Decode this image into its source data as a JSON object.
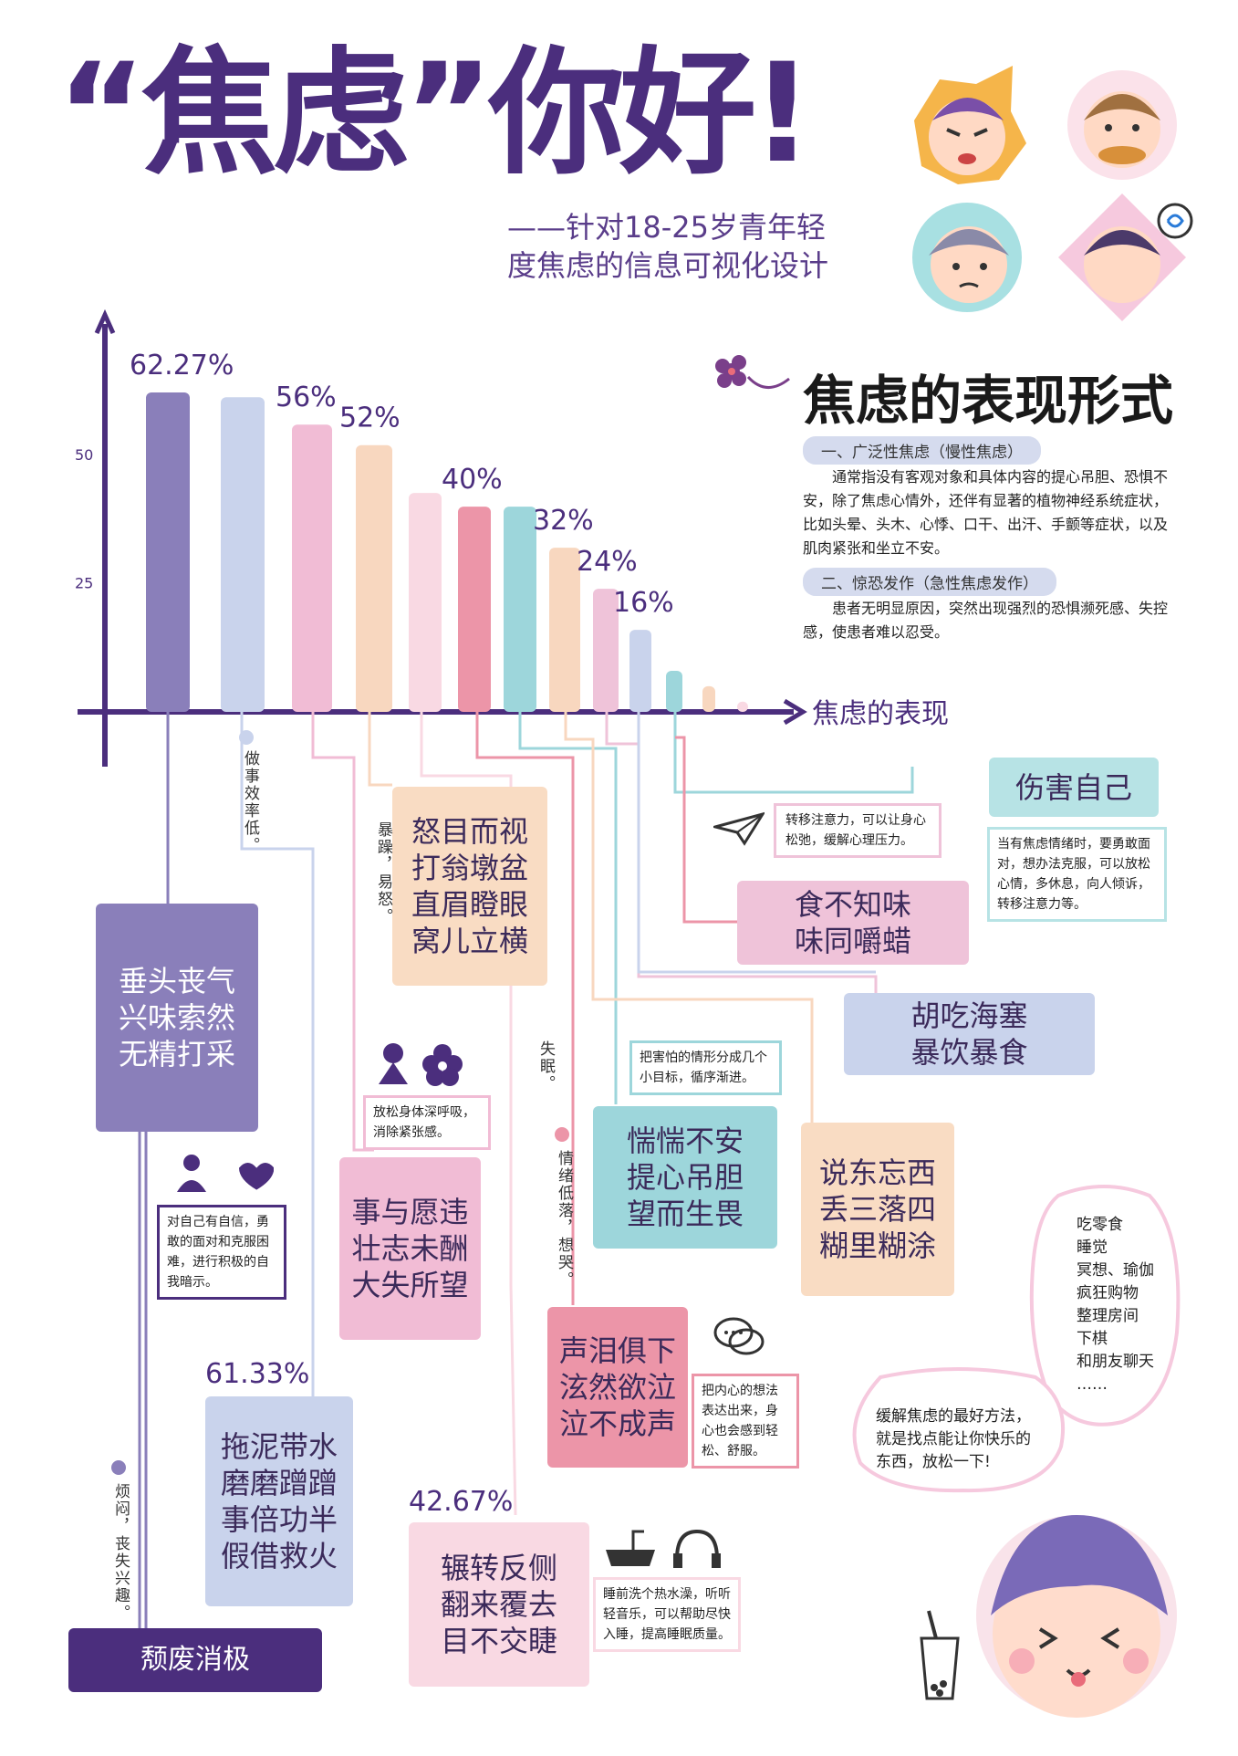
{
  "header": {
    "title": "“焦虑”你好!",
    "subtitle": "——针对18-25岁青年轻度焦虑的信息可视化设计"
  },
  "section": {
    "title": "焦虑的表现形式",
    "type1_label": "一、广泛性焦虑（慢性焦虑）",
    "type1_desc": "通常指没有客观对象和具体内容的提心吊胆、恐惧不安，除了焦虑心情外，还伴有显著的植物神经系统症状，比如头晕、头木、心悸、口干、出汗、手颤等症状，以及肌肉紧张和坐立不安。",
    "type2_label": "二、惊恐发作（急性焦虑发作）",
    "type2_desc": "患者无明显原因，突然出现强烈的恐惧濒死感、失控感，使患者难以忍受。"
  },
  "chart_data": {
    "type": "bar",
    "xlabel": "焦虑的表现",
    "ylabel": "",
    "yticks": [
      25,
      50
    ],
    "values": [
      62.27,
      61.33,
      56,
      52,
      42.67,
      40,
      40,
      32,
      24,
      16,
      8,
      5,
      2
    ],
    "value_labels": [
      "62.27%",
      "",
      "56%",
      "52%",
      "",
      "40%",
      "",
      "32%",
      "24%",
      "16%",
      "",
      "",
      ""
    ],
    "colors": [
      "#8a7fba",
      "#c9d3ec",
      "#f1bcd5",
      "#f8d7bf",
      "#f9d9e3",
      "#ec95a8",
      "#9dd6db",
      "#f8d7bf",
      "#efc3d9",
      "#c9d3ec",
      "#9dd6db",
      "#f8d7bf",
      "#f9d9e3"
    ]
  },
  "boxes": {
    "chuitou": "垂头丧气\n兴味索然\n无精打采",
    "nu": "怒目而视\n打翁墩盆\n直眉瞪眼\n窝儿立横",
    "shiyu": "事与愿违\n壮志未酬\n大失所望",
    "tuoni": "拖泥带水\n磨磨蹭蹭\n事倍功半\n假借救火",
    "zhuanzhuan": "辗转反侧\n翻来覆去\n目不交睫",
    "shenglei": "声泪俱下\n泫然欲泣\n泣不成声",
    "huanghuang": "惴惴不安\n提心吊胆\n望而生畏",
    "shuodong": "说东忘西\n丢三落四\n糊里糊涂",
    "huchi": "胡吃海塞\n暴饮暴食",
    "shibu": "食不知味\n味同嚼蜡",
    "shanghai": "伤害自己",
    "tuifei": "颓废消极"
  },
  "pcts": {
    "p1": "61.33%",
    "p2": "42.67%"
  },
  "vlabels": {
    "v1": "做事效率低。",
    "v2": "暴躁，易怒。",
    "v3": "失眠。",
    "v4": "情绪低落，想哭。",
    "v5": "烦闷，丧失兴趣。"
  },
  "notes": {
    "n_zixin": "对自己有自信，勇敢的面对和克服困难，进行积极的自我暗示。",
    "n_fangsong": "放松身体深呼吸，消除紧张感。",
    "n_haipa": "把害怕的情形分成几个小目标，循序渐进。",
    "n_zhuanyi": "转移注意力，可以让身心松弛，缓解心理压力。",
    "n_shanghai": "当有焦虑情绪时，要勇敢面对，想办法克服，可以放松心情，多休息，向人倾诉，转移注意力等。",
    "n_neixin": "把内心的想法表达出来，身心也会感到轻松、舒服。",
    "n_shuijiao": "睡前洗个热水澡，听听轻音乐，可以帮助尽快入睡，提高睡眠质量。"
  },
  "bubbles": {
    "list": [
      "吃零食",
      "睡觉",
      "冥想、瑜伽",
      "疯狂购物",
      "整理房间",
      "下棋",
      "和朋友聊天",
      "……"
    ],
    "tip": "缓解焦虑的最好方法，就是找点能让你快乐的东西，放松一下!"
  },
  "colors": {
    "accent": "#4b2e7d",
    "purple": "#8a7fba",
    "pink": "#e98ca0",
    "teal": "#9dd6db",
    "peach": "#f8d7bf"
  }
}
